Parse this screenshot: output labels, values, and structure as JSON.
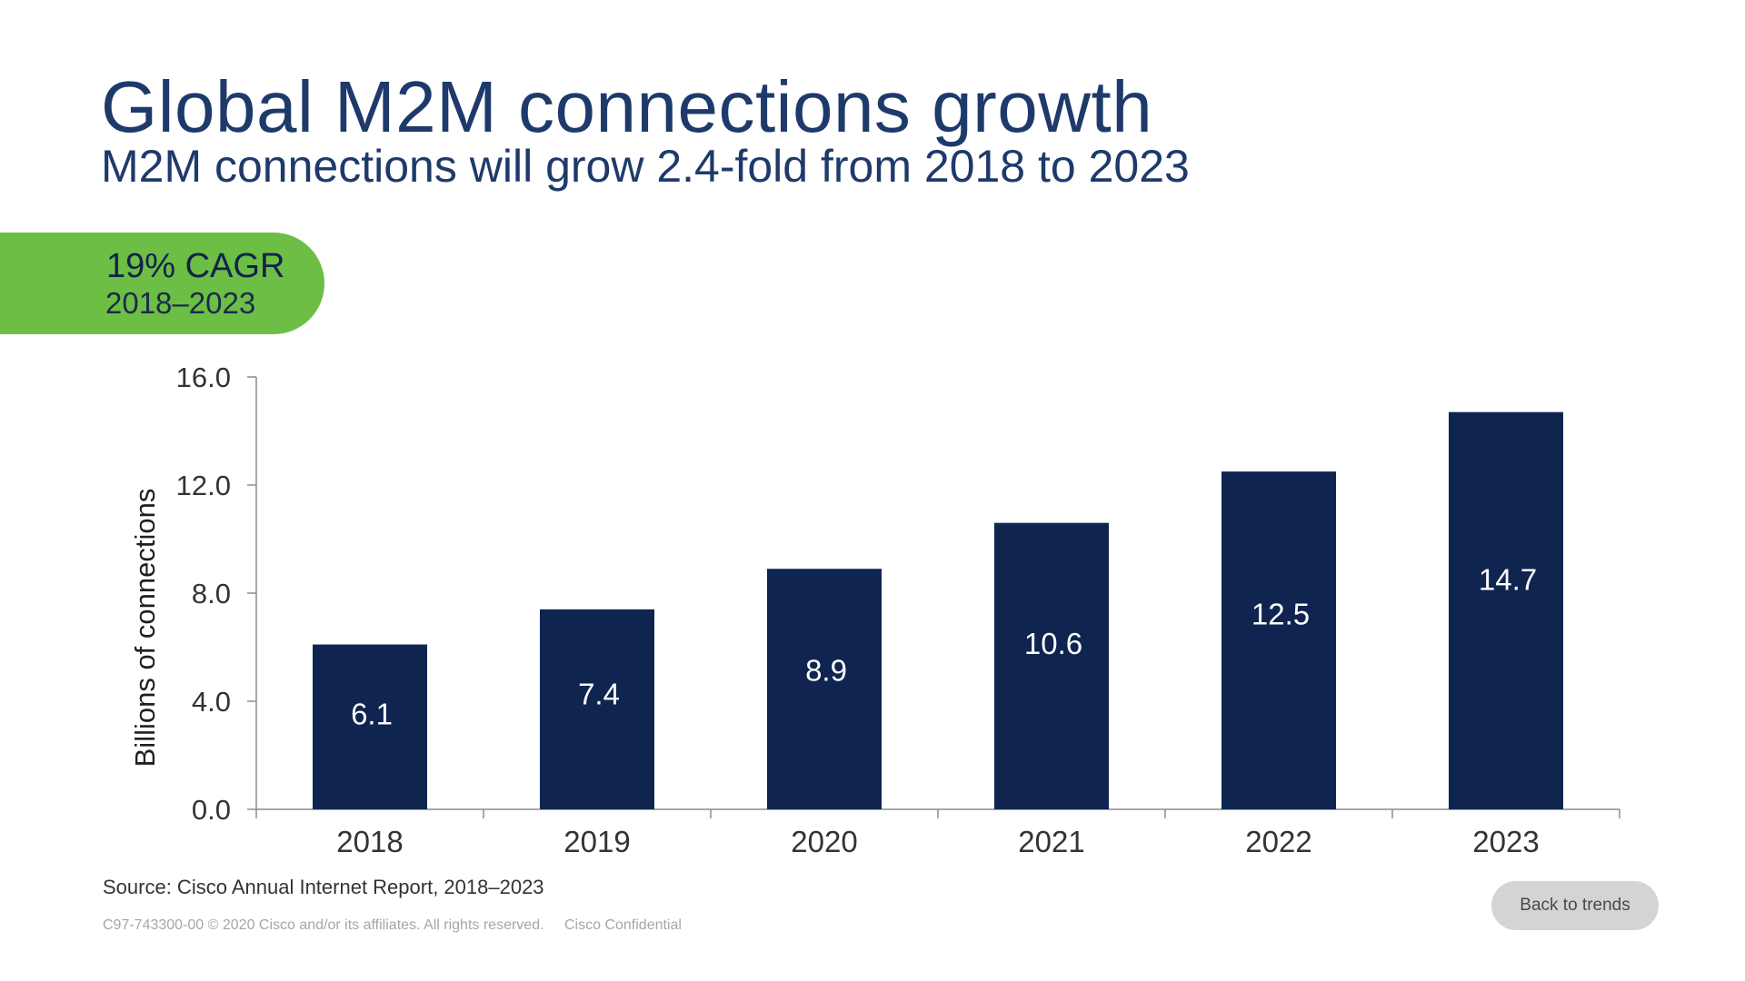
{
  "title": "Global M2M connections growth",
  "subtitle": "M2M connections will grow 2.4-fold from 2018 to 2023",
  "cagr": {
    "value": "19% CAGR",
    "period": "2018–2023"
  },
  "chart_data": {
    "type": "bar",
    "categories": [
      "2018",
      "2019",
      "2020",
      "2021",
      "2022",
      "2023"
    ],
    "values": [
      6.1,
      7.4,
      8.9,
      10.6,
      12.5,
      14.7
    ],
    "data_labels": [
      "6.1",
      "7.4",
      "8.9",
      "10.6",
      "12.5",
      "14.7"
    ],
    "ylabel": "Billions of connections",
    "xlabel": "",
    "ylim": [
      0,
      16
    ],
    "yticks": [
      0,
      4,
      8,
      12,
      16
    ],
    "ytick_labels": [
      "0.0",
      "4.0",
      "8.0",
      "12.0",
      "16.0"
    ],
    "grid": false,
    "colors": {
      "bar": "#0f2550",
      "bar_label": "#ffffff",
      "axis": "#8c8c8c",
      "tick_text": "#333333"
    }
  },
  "footer": {
    "source": "Source: Cisco Annual Internet Report, 2018–2023",
    "legal": "C97-743300-00 © 2020 Cisco and/or its affiliates. All rights reserved.",
    "confidential": "Cisco Confidential"
  },
  "back_button_label": "Back to trends",
  "colors": {
    "title": "#1e3a6b",
    "accent_green": "#6cbe45",
    "background": "#ffffff"
  }
}
